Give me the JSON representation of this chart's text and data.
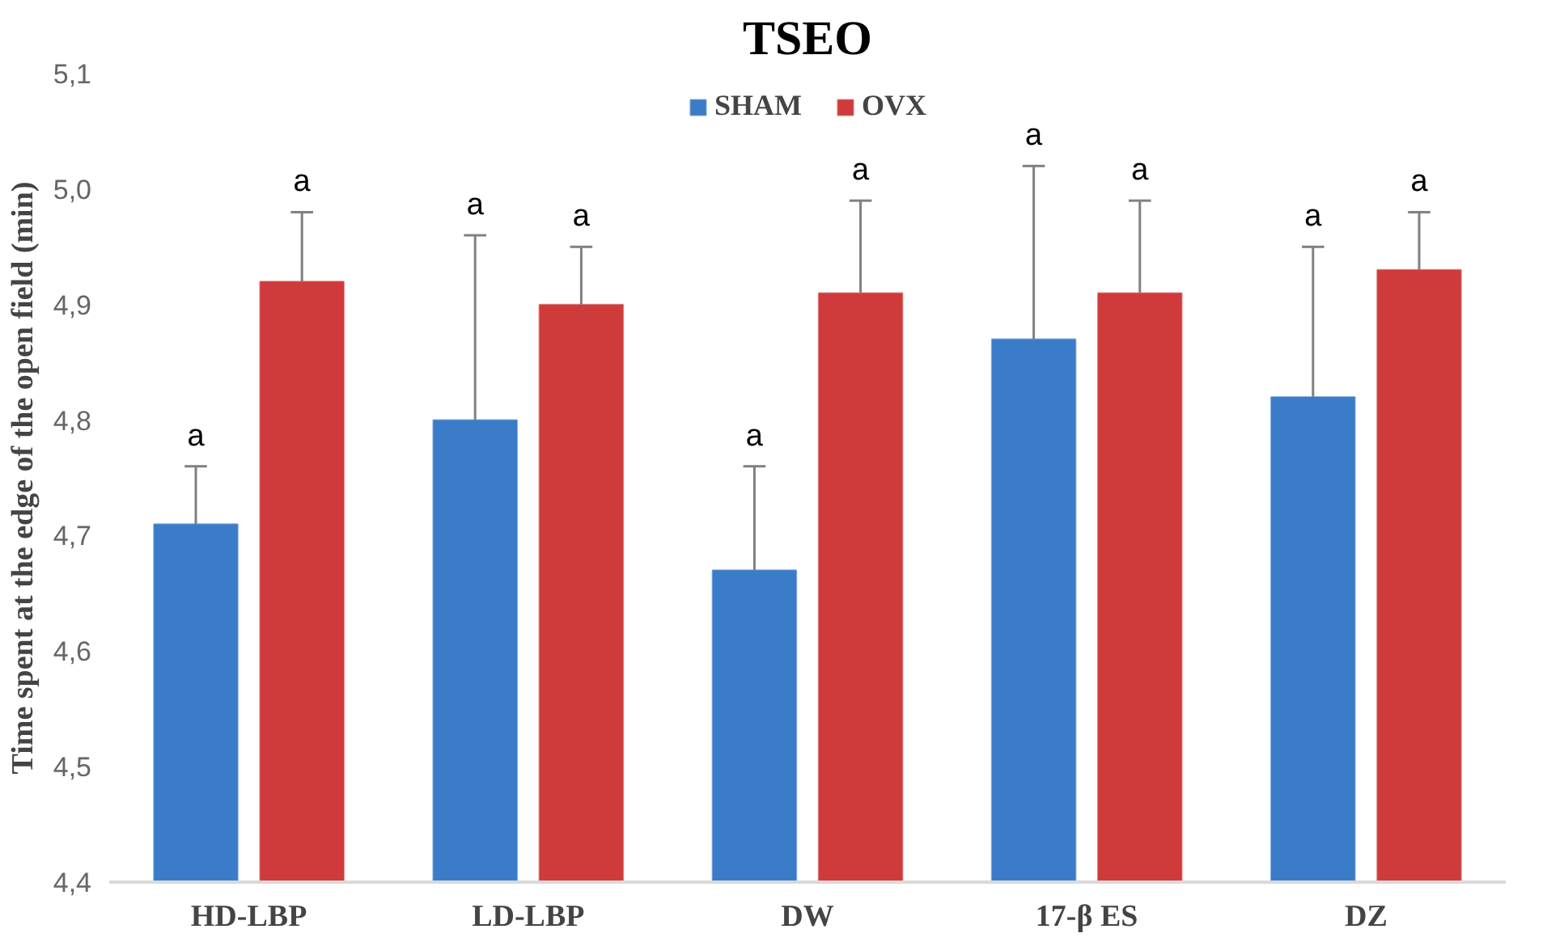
{
  "chart_data": {
    "type": "bar",
    "title": "TSEO",
    "ylabel": "Time spent at the edge of the open field (min)",
    "categories": [
      "HD-LBP",
      "LD-LBP",
      "DW",
      "17-β ES",
      "DZ"
    ],
    "series": [
      {
        "name": "SHAM",
        "color": "#3b7cc9",
        "values": [
          4.71,
          4.8,
          4.67,
          4.87,
          4.82
        ],
        "errors": [
          0.05,
          0.16,
          0.09,
          0.15,
          0.13
        ]
      },
      {
        "name": "OVX",
        "color": "#cf3b3b",
        "values": [
          4.92,
          4.9,
          4.91,
          4.91,
          4.93
        ],
        "errors": [
          0.06,
          0.05,
          0.08,
          0.08,
          0.05
        ]
      }
    ],
    "annotations": [
      "a",
      "a",
      "a",
      "a",
      "a",
      "a",
      "a",
      "a",
      "a",
      "a"
    ],
    "ylim": [
      4.4,
      5.1
    ],
    "yticks": [
      {
        "value": 4.4,
        "label": "4,4"
      },
      {
        "value": 4.5,
        "label": "4,5"
      },
      {
        "value": 4.6,
        "label": "4,6"
      },
      {
        "value": 4.7,
        "label": "4,7"
      },
      {
        "value": 4.8,
        "label": "4,8"
      },
      {
        "value": 4.9,
        "label": "4,9"
      },
      {
        "value": 5.0,
        "label": "5,0"
      },
      {
        "value": 5.1,
        "label": "5,1"
      }
    ],
    "legend": "top",
    "grid": false
  }
}
